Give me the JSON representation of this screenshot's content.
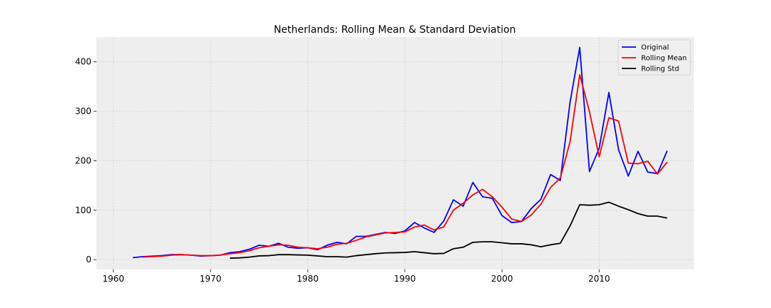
{
  "chart_data": {
    "type": "line",
    "title": "Netherlands: Rolling Mean & Standard Deviation",
    "xlabel": "",
    "ylabel": "",
    "xlim": [
      1958.25,
      2019.75
    ],
    "ylim": [
      -20,
      450
    ],
    "xticks": [
      1960,
      1970,
      1980,
      1990,
      2000,
      2010
    ],
    "yticks": [
      0,
      100,
      200,
      300,
      400
    ],
    "grid": true,
    "legend_position": "top-right",
    "series": [
      {
        "name": "Original",
        "color": "#0000ff",
        "x": [
          1962,
          1963,
          1964,
          1965,
          1966,
          1967,
          1968,
          1969,
          1970,
          1971,
          1972,
          1973,
          1974,
          1975,
          1976,
          1977,
          1978,
          1979,
          1980,
          1981,
          1982,
          1983,
          1984,
          1985,
          1986,
          1987,
          1988,
          1989,
          1990,
          1991,
          1992,
          1993,
          1994,
          1995,
          1996,
          1997,
          1998,
          1999,
          2000,
          2001,
          2002,
          2003,
          2004,
          2005,
          2006,
          2007,
          2008,
          2009,
          2010,
          2011,
          2012,
          2013,
          2014,
          2015,
          2016,
          2017
        ],
        "values": [
          4,
          6,
          7,
          8,
          10,
          10,
          9,
          7,
          8,
          9,
          14,
          16,
          21,
          29,
          27,
          33,
          25,
          23,
          24,
          20,
          29,
          35,
          32,
          47,
          47,
          51,
          55,
          53,
          58,
          75,
          64,
          55,
          78,
          121,
          108,
          156,
          127,
          124,
          89,
          75,
          77,
          103,
          122,
          172,
          160,
          318,
          429,
          178,
          225,
          338,
          222,
          169,
          219,
          177,
          174,
          220
        ]
      },
      {
        "name": "Rolling Mean",
        "color": "#ff0000",
        "x": [
          1963,
          1964,
          1965,
          1966,
          1967,
          1968,
          1969,
          1970,
          1971,
          1972,
          1973,
          1974,
          1975,
          1976,
          1977,
          1978,
          1979,
          1980,
          1981,
          1982,
          1983,
          1984,
          1985,
          1986,
          1987,
          1988,
          1989,
          1990,
          1991,
          1992,
          1993,
          1994,
          1995,
          1996,
          1997,
          1998,
          1999,
          2000,
          2001,
          2002,
          2003,
          2004,
          2005,
          2006,
          2007,
          2008,
          2009,
          2010,
          2011,
          2012,
          2013,
          2014,
          2015,
          2016,
          2017
        ],
        "values": [
          5,
          6,
          7,
          9,
          10,
          9,
          8,
          8,
          9,
          12,
          14,
          18,
          24,
          27,
          30,
          29,
          25,
          24,
          22,
          25,
          31,
          33,
          39,
          46,
          50,
          54,
          55,
          56,
          66,
          70,
          60,
          66,
          100,
          114,
          131,
          142,
          127,
          106,
          82,
          77,
          90,
          112,
          146,
          165,
          238,
          374,
          299,
          208,
          287,
          280,
          195,
          194,
          199,
          173,
          197
        ]
      },
      {
        "name": "Rolling Std",
        "color": "#000000",
        "x": [
          1972,
          1973,
          1974,
          1975,
          1976,
          1977,
          1978,
          1979,
          1980,
          1981,
          1982,
          1983,
          1984,
          1985,
          1986,
          1987,
          1988,
          1989,
          1990,
          1991,
          1992,
          1993,
          1994,
          1995,
          1996,
          1997,
          1998,
          1999,
          2000,
          2001,
          2002,
          2003,
          2004,
          2005,
          2006,
          2007,
          2008,
          2009,
          2010,
          2011,
          2012,
          2013,
          2014,
          2015,
          2016,
          2017
        ],
        "values": [
          3,
          3.5,
          5,
          7.5,
          8,
          10,
          10,
          9.5,
          9,
          7.5,
          6,
          6,
          5,
          8,
          10,
          12,
          13.5,
          14,
          14.5,
          16,
          14,
          12,
          12.5,
          22,
          25,
          35,
          36,
          36,
          34,
          32,
          32,
          30,
          26,
          30,
          33,
          68,
          111,
          110,
          111,
          116,
          108,
          101,
          93,
          88,
          88,
          84
        ]
      }
    ]
  }
}
